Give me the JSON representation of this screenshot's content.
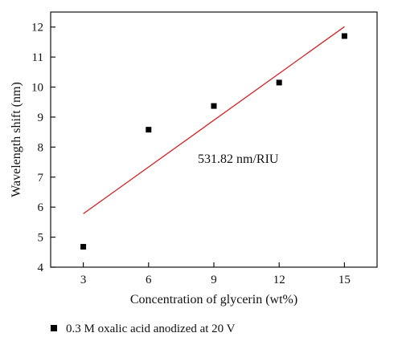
{
  "chart_data": {
    "type": "scatter",
    "xlabel": "Concentration of glycerin (wt%)",
    "ylabel": "Wavelength shift (nm)",
    "xlim": [
      1.5,
      16.5
    ],
    "ylim": [
      4,
      12.5
    ],
    "xticks": [
      3,
      6,
      9,
      12,
      15
    ],
    "yticks": [
      4,
      5,
      6,
      7,
      8,
      9,
      10,
      11,
      12
    ],
    "xtick_labels": [
      "3",
      "6",
      "9",
      "12",
      "15"
    ],
    "ytick_labels": [
      "4",
      "5",
      "6",
      "7",
      "8",
      "9",
      "10",
      "11",
      "12"
    ],
    "grid": false,
    "legend_position": "bottom-left, below plot",
    "series": [
      {
        "name": "0.3 M oxalic acid anodized at 20 V",
        "marker": "square",
        "color": "#000000",
        "x": [
          3,
          6,
          9,
          12,
          15
        ],
        "y": [
          4.68,
          8.58,
          9.37,
          10.15,
          11.7
        ]
      }
    ],
    "fit_line": {
      "color": "#d62020",
      "x": [
        3,
        15
      ],
      "y": [
        5.78,
        12.01
      ]
    },
    "annotation": "531.82 nm/RIU"
  }
}
